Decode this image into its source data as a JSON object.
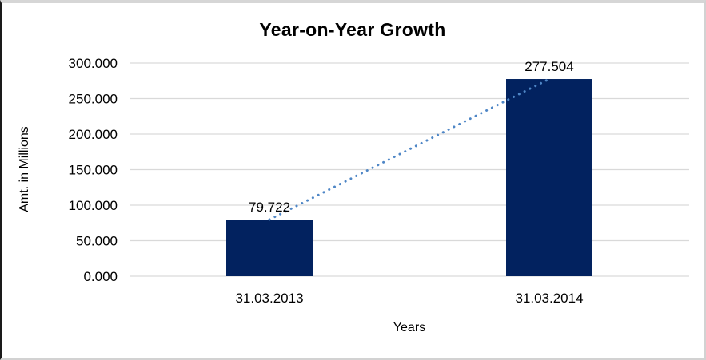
{
  "chart_data": {
    "type": "bar",
    "title": "Year-on-Year Growth",
    "xlabel": "Years",
    "ylabel": "Amt. in Millions",
    "categories": [
      "31.03.2013",
      "31.03.2014"
    ],
    "values": [
      79.722,
      277.504
    ],
    "data_labels": [
      "79.722",
      "277.504"
    ],
    "ylim": [
      0,
      300
    ],
    "ytick_step": 50,
    "ytick_labels": [
      "0.000",
      "50.000",
      "100.000",
      "150.000",
      "200.000",
      "250.000",
      "300.000"
    ],
    "grid": true,
    "legend": "none",
    "bar_color": "#02225f",
    "trendline": {
      "style": "dotted",
      "color": "#4e86c6"
    },
    "gridline_color": "#d9d9d9",
    "text_color": "#000000",
    "tick_label_color": "#000000"
  }
}
